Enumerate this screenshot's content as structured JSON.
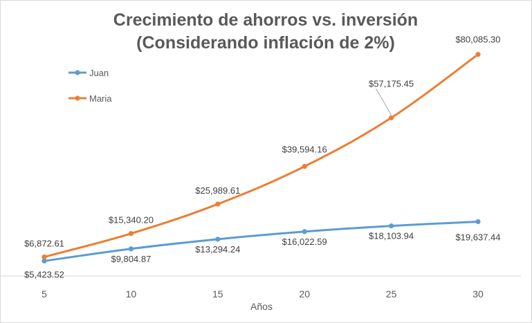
{
  "chart_data": {
    "type": "line",
    "title": [
      "Crecimiento de ahorros vs. inversión",
      "(Considerando inflación de 2%)"
    ],
    "xlabel": "Años",
    "ylabel": "",
    "x": [
      5,
      10,
      15,
      20,
      25,
      30
    ],
    "ylim": [
      0,
      85000
    ],
    "grid": false,
    "legend_position": "top-left",
    "series": [
      {
        "name": "Juan",
        "color": "#5b9bd5",
        "values": [
          5423.52,
          9804.87,
          13294.24,
          16022.59,
          18103.94,
          19637.44
        ],
        "labels": [
          "$5,423.52",
          "$9,804.87",
          "$13,294.24",
          "$16,022.59",
          "$18,103.94",
          "$19,637.44"
        ]
      },
      {
        "name": "Maria",
        "color": "#ed7d31",
        "values": [
          6872.61,
          15340.2,
          25989.61,
          39594.16,
          57175.45,
          80085.3
        ],
        "labels": [
          "$6,872.61",
          "$15,340.20",
          "$25,989.61",
          "$39,594.16",
          "$57,175.45",
          "$80,085.30"
        ]
      }
    ]
  }
}
